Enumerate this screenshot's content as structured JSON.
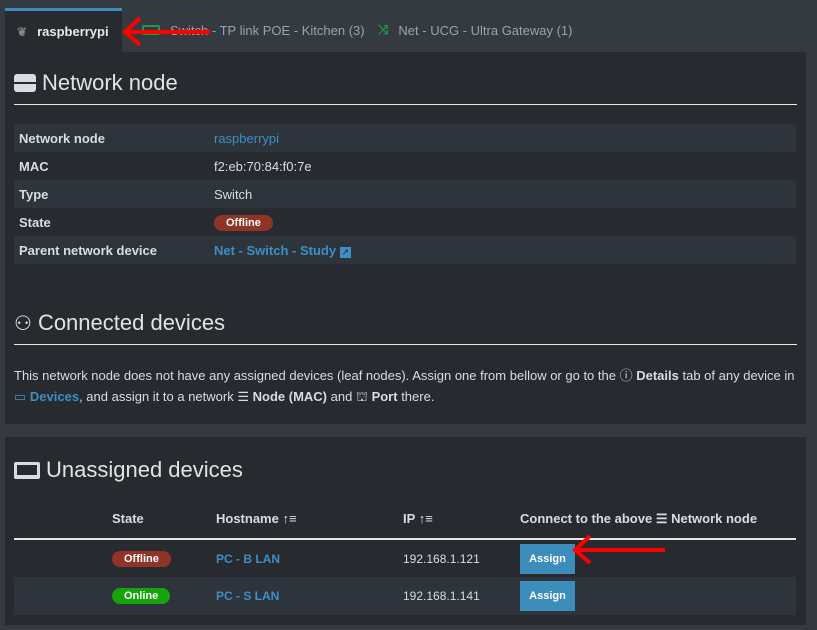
{
  "tabs": [
    {
      "label": "raspberrypi",
      "icon": "raspberry-icon",
      "active": true
    },
    {
      "label": "Switch - TP link POE - Kitchen (3)",
      "icon": "switch-icon"
    },
    {
      "label": "Net - UCG - Ultra Gateway (1)",
      "icon": "shuffle-icon"
    }
  ],
  "node": {
    "title": "Network node",
    "rows": [
      {
        "label": "Network node",
        "value": "raspberrypi"
      },
      {
        "label": "MAC",
        "value": "f2:eb:70:84:f0:7e"
      },
      {
        "label": "Type",
        "value": "Switch"
      },
      {
        "label": "State",
        "value": "Offline"
      },
      {
        "label": "Parent network device",
        "value": "Net - Switch - Study"
      }
    ]
  },
  "connected": {
    "title": "Connected devices",
    "t1": "This network node does not have any assigned devices (leaf nodes). Assign one from bellow or go to the",
    "details": "Details",
    "t2": "tab of any device in",
    "devices": "Devices",
    "t3": ", and assign it to a network",
    "node": "Node (MAC)",
    "t4": "and",
    "port": "Port",
    "t5": "there."
  },
  "unassigned": {
    "title": "Unassigned devices",
    "headers": {
      "state": "State",
      "hostname": "Hostname",
      "ip": "IP",
      "connect": "Connect to the above",
      "connect2": "Network node"
    },
    "rows": [
      {
        "state": "Offline",
        "hostname": "PC - B LAN",
        "ip": "192.168.1.121",
        "action": "Assign"
      },
      {
        "state": "Online",
        "hostname": "PC - S LAN",
        "ip": "192.168.1.141",
        "action": "Assign"
      }
    ]
  },
  "colors": {
    "accent": "#3c8dbc",
    "offline": "#8f3426",
    "online": "#16a30b",
    "annotation": "#ff0000"
  }
}
